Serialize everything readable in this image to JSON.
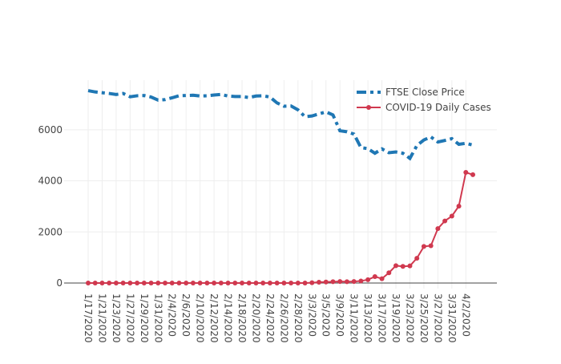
{
  "chart_data": {
    "type": "line",
    "categories": [
      "1/17/2020",
      null,
      "1/21/2020",
      null,
      "1/23/2020",
      null,
      "1/27/2020",
      null,
      "1/29/2020",
      null,
      "1/31/2020",
      null,
      "2/4/2020",
      null,
      "2/6/2020",
      null,
      "2/10/2020",
      null,
      "2/12/2020",
      null,
      "2/14/2020",
      null,
      "2/18/2020",
      null,
      "2/20/2020",
      null,
      "2/24/2020",
      null,
      "2/26/2020",
      null,
      "2/28/2020",
      null,
      "3/3/2020",
      null,
      "3/5/2020",
      null,
      "3/9/2020",
      null,
      "3/11/2020",
      null,
      "3/13/2020",
      null,
      "3/17/2020",
      null,
      "3/19/2020",
      null,
      "3/23/2020",
      null,
      "3/25/2020",
      null,
      "3/27/2020",
      null,
      "3/31/2020",
      null,
      "4/2/2020",
      null
    ],
    "series": [
      {
        "name": "FTSE Close Price",
        "color": "#1f77b4",
        "dash": "dashdot",
        "markers": false,
        "values": [
          7530,
          7480,
          7450,
          7420,
          7380,
          7420,
          7290,
          7330,
          7340,
          7280,
          7160,
          7180,
          7250,
          7330,
          7340,
          7350,
          7320,
          7330,
          7360,
          7380,
          7320,
          7300,
          7300,
          7260,
          7320,
          7330,
          7280,
          7050,
          6920,
          6930,
          6780,
          6510,
          6540,
          6620,
          6700,
          6580,
          5960,
          5920,
          5830,
          5300,
          5260,
          5080,
          5250,
          5100,
          5130,
          5080,
          4880,
          5380,
          5600,
          5720,
          5520,
          5580,
          5650,
          5430,
          5470,
          5400
        ]
      },
      {
        "name": "COVID-19 Daily Cases",
        "color": "#d0394f",
        "dash": "solid",
        "markers": true,
        "values": [
          0,
          0,
          0,
          0,
          0,
          0,
          0,
          0,
          0,
          0,
          0,
          0,
          0,
          0,
          0,
          0,
          0,
          0,
          0,
          0,
          0,
          0,
          0,
          0,
          0,
          0,
          0,
          0,
          0,
          0,
          0,
          0,
          10,
          30,
          40,
          50,
          60,
          50,
          60,
          80,
          130,
          250,
          170,
          400,
          680,
          650,
          670,
          970,
          1430,
          1460,
          2130,
          2430,
          2620,
          3010,
          4330,
          4240
        ]
      }
    ],
    "ylim": [
      -220,
      7940
    ],
    "yticks": [
      0,
      2000,
      4000,
      6000
    ],
    "grid": true,
    "legend": "top-right"
  }
}
